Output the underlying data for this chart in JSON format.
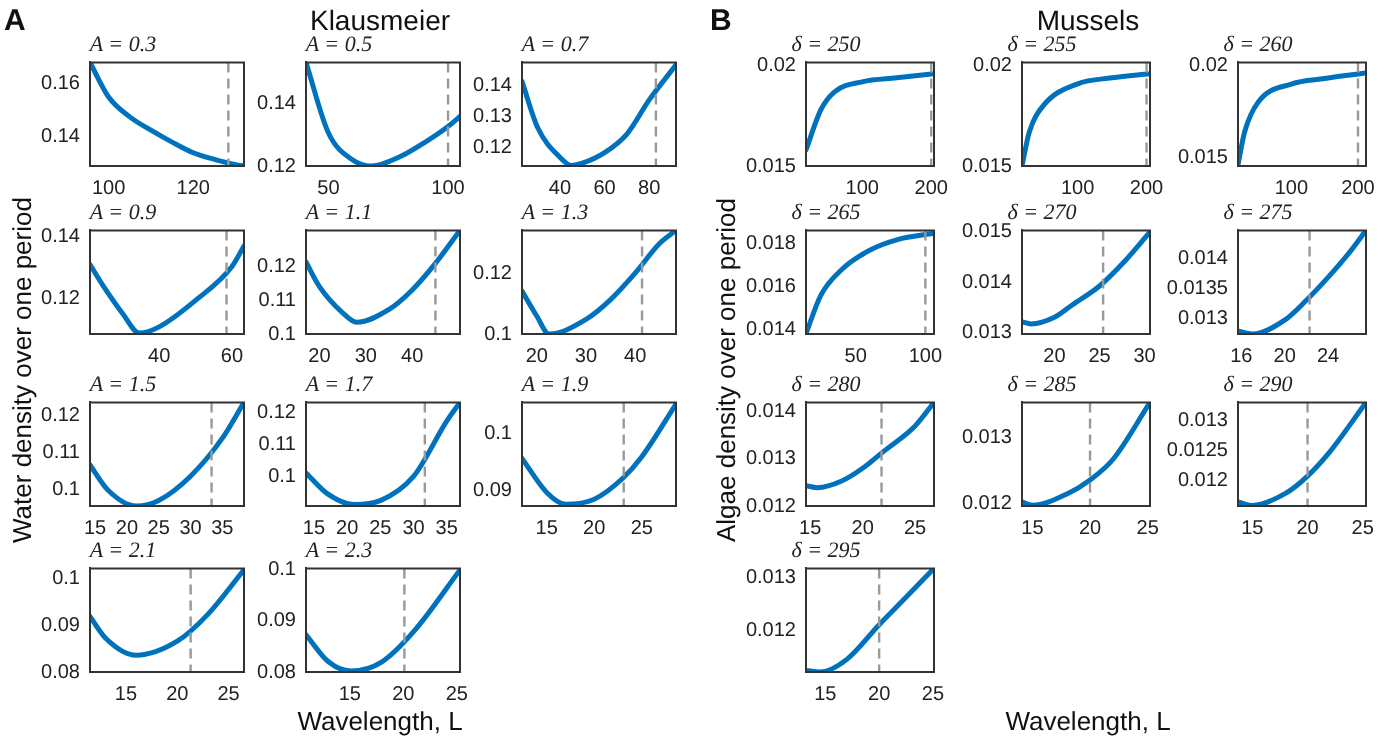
{
  "chart_data": [
    {
      "type": "line",
      "title": "A = 0.3",
      "xlabel": "Wavelength, L",
      "ylabel": "Water density over one period",
      "annotations": [
        "A",
        "Klausmeier"
      ],
      "color": "#0072bd",
      "x": [
        95.6,
        100,
        105,
        110,
        115,
        120,
        125,
        130,
        132
      ],
      "values": [
        0.168,
        0.155,
        0.1475,
        0.1425,
        0.138,
        0.134,
        0.1315,
        0.1295,
        0.129
      ],
      "xlim": [
        95.6,
        132
      ],
      "xticks": [
        100,
        120
      ],
      "ylim": [
        0.129,
        0.168
      ],
      "yticks": [
        0.14,
        0.16
      ],
      "ref_lines": [
        {
          "axis": "x",
          "value": 128.3,
          "color": "#999999",
          "line_style": "dashed"
        }
      ]
    },
    {
      "type": "line",
      "title": "A = 0.5",
      "color": "#0072bd",
      "x": [
        40.6,
        50,
        60,
        68,
        80,
        90,
        100,
        105
      ],
      "values": [
        0.153,
        0.1305,
        0.122,
        0.12,
        0.123,
        0.1274,
        0.1326,
        0.1358
      ],
      "xlim": [
        40.6,
        105
      ],
      "xticks": [
        50,
        100
      ],
      "ylim": [
        0.12,
        0.153
      ],
      "yticks": [
        0.12,
        0.14
      ],
      "ref_lines": [
        {
          "axis": "x",
          "value": 100,
          "color": "#999999",
          "line_style": "dashed"
        }
      ]
    },
    {
      "type": "line",
      "title": "A = 0.7",
      "color": "#0072bd",
      "x": [
        23,
        30,
        40,
        45,
        50,
        60,
        70,
        80,
        92
      ],
      "values": [
        0.1413,
        0.1264,
        0.1168,
        0.1142,
        0.1149,
        0.1183,
        0.1243,
        0.1353,
        0.1466
      ],
      "xlim": [
        23,
        92
      ],
      "xticks": [
        40,
        60,
        80
      ],
      "ylim": [
        0.114,
        0.1474
      ],
      "yticks": [
        0.12,
        0.13,
        0.14
      ],
      "ref_lines": [
        {
          "axis": "x",
          "value": 83,
          "color": "#999999",
          "line_style": "dashed"
        }
      ]
    },
    {
      "type": "line",
      "title": "A = 0.9",
      "color": "#0072bd",
      "x": [
        21,
        25,
        30,
        34.6,
        40,
        50,
        60,
        63.3
      ],
      "values": [
        0.131,
        0.1235,
        0.1152,
        0.109,
        0.111,
        0.1195,
        0.1304,
        0.137
      ],
      "xlim": [
        21,
        63.3
      ],
      "xticks": [
        40,
        60
      ],
      "ylim": [
        0.1087,
        0.142
      ],
      "yticks": [
        0.12,
        0.14
      ],
      "ref_lines": [
        {
          "axis": "x",
          "value": 58.5,
          "color": "#999999",
          "line_style": "dashed"
        }
      ]
    },
    {
      "type": "line",
      "title": "A = 1.1",
      "color": "#0072bd",
      "x": [
        17.1,
        20,
        25,
        28,
        35,
        40,
        45,
        50.3
      ],
      "values": [
        0.1214,
        0.1141,
        0.1063,
        0.1035,
        0.1073,
        0.1131,
        0.121,
        0.1308
      ],
      "xlim": [
        17.1,
        50.3
      ],
      "xticks": [
        20,
        30,
        40
      ],
      "ylim": [
        0.1,
        0.1308
      ],
      "yticks": [
        0.1,
        0.11,
        0.12
      ],
      "ref_lines": [
        {
          "axis": "x",
          "value": 45,
          "color": "#999999",
          "line_style": "dashed"
        }
      ]
    },
    {
      "type": "line",
      "title": "A = 1.3",
      "color": "#0072bd",
      "x": [
        17,
        20,
        22.5,
        30,
        35,
        40,
        45,
        48.3
      ],
      "values": [
        0.1141,
        0.1059,
        0.1,
        0.1048,
        0.1113,
        0.12,
        0.1298,
        0.134
      ],
      "xlim": [
        17,
        48.3
      ],
      "xticks": [
        20,
        30,
        40
      ],
      "ylim": [
        0.1,
        0.134
      ],
      "yticks": [
        0.1,
        0.12
      ],
      "ref_lines": [
        {
          "axis": "x",
          "value": 41.4,
          "color": "#999999",
          "line_style": "dashed"
        }
      ]
    },
    {
      "type": "line",
      "title": "A = 1.5",
      "color": "#0072bd",
      "x": [
        14.2,
        17,
        21.5,
        25,
        30,
        35,
        38.4
      ],
      "values": [
        0.1067,
        0.1,
        0.0957,
        0.0972,
        0.1037,
        0.1139,
        0.1235
      ],
      "xlim": [
        14.2,
        38.4
      ],
      "xticks": [
        15,
        20,
        25,
        30,
        35
      ],
      "ylim": [
        0.0957,
        0.1235
      ],
      "yticks": [
        0.1,
        0.11,
        0.12
      ],
      "ref_lines": [
        {
          "axis": "x",
          "value": 33.3,
          "color": "#999999",
          "line_style": "dashed"
        }
      ]
    },
    {
      "type": "line",
      "title": "A = 1.7",
      "color": "#0072bd",
      "x": [
        13.8,
        17,
        21,
        25,
        30,
        35,
        37
      ],
      "values": [
        0.1011,
        0.0946,
        0.0912,
        0.0924,
        0.1,
        0.1174,
        0.1233
      ],
      "xlim": [
        13.8,
        37
      ],
      "xticks": [
        15,
        20,
        25,
        30,
        35
      ],
      "ylim": [
        0.0907,
        0.1233
      ],
      "yticks": [
        0.1,
        0.11,
        0.12
      ],
      "ref_lines": [
        {
          "axis": "x",
          "value": 31.7,
          "color": "#999999",
          "line_style": "dashed"
        }
      ]
    },
    {
      "type": "line",
      "title": "A = 1.9",
      "color": "#0072bd",
      "x": [
        12.4,
        15,
        17,
        20,
        23,
        25,
        28.6
      ],
      "values": [
        0.0956,
        0.0896,
        0.0875,
        0.0884,
        0.0921,
        0.0959,
        0.1052
      ],
      "xlim": [
        12.4,
        28.6
      ],
      "xticks": [
        15,
        20,
        25
      ],
      "ylim": [
        0.0872,
        0.1055
      ],
      "yticks": [
        0.09,
        0.1
      ],
      "ref_lines": [
        {
          "axis": "x",
          "value": 23.1,
          "color": "#999999",
          "line_style": "dashed"
        }
      ]
    },
    {
      "type": "line",
      "title": "A = 2.1",
      "color": "#0072bd",
      "x": [
        11.5,
        13,
        16,
        20,
        23,
        26.5
      ],
      "values": [
        0.0919,
        0.0873,
        0.0836,
        0.0866,
        0.0924,
        0.1019
      ],
      "xlim": [
        11.5,
        26.5
      ],
      "xticks": [
        15,
        20,
        25
      ],
      "ylim": [
        0.08,
        0.1022
      ],
      "yticks": [
        0.08,
        0.09,
        0.1
      ],
      "ref_lines": [
        {
          "axis": "x",
          "value": 21.3,
          "color": "#999999",
          "line_style": "dashed"
        }
      ]
    },
    {
      "type": "line",
      "title": "A = 2.3",
      "color": "#0072bd",
      "x": [
        10.9,
        13,
        15.1,
        18,
        21,
        25.3
      ],
      "values": [
        0.0873,
        0.082,
        0.0802,
        0.082,
        0.088,
        0.1
      ],
      "xlim": [
        10.9,
        25.3
      ],
      "xticks": [
        15,
        20,
        25
      ],
      "ylim": [
        0.08,
        0.1003
      ],
      "yticks": [
        0.08,
        0.09,
        0.1
      ],
      "ref_lines": [
        {
          "axis": "x",
          "value": 20.1,
          "color": "#999999",
          "line_style": "dashed"
        }
      ]
    },
    {
      "type": "line",
      "title": "δ = 250",
      "xlabel": "Wavelength, L",
      "ylabel": "Algae density over one period",
      "annotations": [
        "B",
        "Mussels"
      ],
      "color": "#0072bd",
      "x": [
        18.6,
        40,
        60,
        100,
        150,
        204
      ],
      "values": [
        0.0158,
        0.0178,
        0.0187,
        0.0192,
        0.0194,
        0.0196
      ],
      "xlim": [
        18.6,
        204
      ],
      "xticks": [
        100,
        200
      ],
      "ylim": [
        0.015,
        0.02017
      ],
      "yticks": [
        0.015,
        0.02
      ],
      "ref_lines": [
        {
          "axis": "x",
          "value": 200,
          "color": "#999999",
          "line_style": "dashed"
        }
      ]
    },
    {
      "type": "line",
      "title": "δ = 255",
      "color": "#0072bd",
      "x": [
        19.4,
        30,
        50,
        100,
        150,
        205
      ],
      "values": [
        0.015,
        0.0167,
        0.018,
        0.0191,
        0.0194,
        0.0196
      ],
      "xlim": [
        19.4,
        205
      ],
      "xticks": [
        100,
        200
      ],
      "ylim": [
        0.015,
        0.02017
      ],
      "yticks": [
        0.015,
        0.02
      ],
      "ref_lines": [
        {
          "axis": "x",
          "value": 200,
          "color": "#999999",
          "line_style": "dashed"
        }
      ]
    },
    {
      "type": "line",
      "title": "δ = 260",
      "color": "#0072bd",
      "x": [
        20,
        30,
        50,
        100,
        150,
        212
      ],
      "values": [
        0.0146,
        0.0164,
        0.018,
        0.019,
        0.0193,
        0.0196
      ],
      "xlim": [
        20,
        212
      ],
      "xticks": [
        100,
        200
      ],
      "ylim": [
        0.01453,
        0.02018
      ],
      "yticks": [
        0.015,
        0.02
      ],
      "ref_lines": [
        {
          "axis": "x",
          "value": 200,
          "color": "#999999",
          "line_style": "dashed"
        }
      ]
    },
    {
      "type": "line",
      "title": "δ = 265",
      "color": "#0072bd",
      "x": [
        14.3,
        25,
        40,
        60,
        80,
        106.2
      ],
      "values": [
        0.0138,
        0.0156,
        0.0168,
        0.0177,
        0.0182,
        0.0185
      ],
      "xlim": [
        14.3,
        106.2
      ],
      "xticks": [
        50,
        100
      ],
      "ylim": [
        0.01378,
        0.01863
      ],
      "yticks": [
        0.014,
        0.016,
        0.018
      ],
      "ref_lines": [
        {
          "axis": "x",
          "value": 100,
          "color": "#999999",
          "line_style": "dashed"
        }
      ]
    },
    {
      "type": "line",
      "title": "δ = 270",
      "color": "#0072bd",
      "x": [
        16.4,
        17.4,
        20,
        22,
        25,
        28,
        30.6
      ],
      "values": [
        0.01322,
        0.01318,
        0.01331,
        0.01356,
        0.01393,
        0.01446,
        0.015
      ],
      "xlim": [
        16.4,
        30.6
      ],
      "xticks": [
        20,
        25,
        30
      ],
      "ylim": [
        0.01298,
        0.01503
      ],
      "yticks": [
        0.013,
        0.014,
        0.015
      ],
      "ref_lines": [
        {
          "axis": "x",
          "value": 25.4,
          "color": "#999999",
          "line_style": "dashed"
        }
      ]
    },
    {
      "type": "line",
      "title": "δ = 275",
      "color": "#0072bd",
      "x": [
        15.7,
        17,
        20,
        22,
        24,
        26,
        27.5
      ],
      "values": [
        0.0128,
        0.01275,
        0.01298,
        0.01331,
        0.01369,
        0.01411,
        0.01447
      ],
      "xlim": [
        15.7,
        27.5
      ],
      "xticks": [
        16,
        20,
        24
      ],
      "ylim": [
        0.01275,
        0.01447
      ],
      "yticks": [
        0.013,
        0.0135,
        0.014
      ],
      "ref_lines": [
        {
          "axis": "x",
          "value": 22.3,
          "color": "#999999",
          "line_style": "dashed"
        }
      ]
    },
    {
      "type": "line",
      "title": "δ = 280",
      "color": "#0072bd",
      "x": [
        14.6,
        15.7,
        18,
        20,
        22,
        25,
        26.8
      ],
      "values": [
        0.01243,
        0.01239,
        0.01253,
        0.0128,
        0.01316,
        0.0137,
        0.0142
      ],
      "xlim": [
        14.6,
        26.8
      ],
      "xticks": [
        15,
        20,
        25
      ],
      "ylim": [
        0.012,
        0.0142
      ],
      "yticks": [
        0.012,
        0.013,
        0.014
      ],
      "ref_lines": [
        {
          "axis": "x",
          "value": 21.8,
          "color": "#999999",
          "line_style": "dashed"
        }
      ]
    },
    {
      "type": "line",
      "title": "δ = 285",
      "color": "#0072bd",
      "x": [
        14.1,
        15,
        18,
        20,
        22,
        25.2
      ],
      "values": [
        0.01203,
        0.01198,
        0.01215,
        0.01236,
        0.01267,
        0.01352
      ],
      "xlim": [
        14.1,
        25.2
      ],
      "xticks": [
        15,
        20,
        25
      ],
      "ylim": [
        0.01197,
        0.01352
      ],
      "yticks": [
        0.012,
        0.013
      ],
      "ref_lines": [
        {
          "axis": "x",
          "value": 20,
          "color": "#999999",
          "line_style": "dashed"
        }
      ]
    },
    {
      "type": "line",
      "title": "δ = 290",
      "color": "#0072bd",
      "x": [
        13.7,
        15,
        18,
        20,
        22,
        25.3
      ],
      "values": [
        0.01165,
        0.01159,
        0.01179,
        0.01208,
        0.01248,
        0.01331
      ],
      "xlim": [
        13.7,
        25.3
      ],
      "xticks": [
        15,
        20,
        25
      ],
      "ylim": [
        0.01158,
        0.01331
      ],
      "yticks": [
        0.012,
        0.0125,
        0.013
      ],
      "ref_lines": [
        {
          "axis": "x",
          "value": 20,
          "color": "#999999",
          "line_style": "dashed"
        }
      ]
    },
    {
      "type": "line",
      "title": "δ = 295",
      "color": "#0072bd",
      "x": [
        13.2,
        14.5,
        17,
        20,
        22.5,
        25.1
      ],
      "values": [
        0.01124,
        0.01121,
        0.01145,
        0.01211,
        0.01263,
        0.01318
      ],
      "xlim": [
        13.2,
        25.1
      ],
      "xticks": [
        15,
        20,
        25
      ],
      "ylim": [
        0.01121,
        0.01318
      ],
      "yticks": [
        0.012,
        0.013
      ],
      "ref_lines": [
        {
          "axis": "x",
          "value": 20,
          "color": "#999999",
          "line_style": "dashed"
        }
      ]
    }
  ]
}
